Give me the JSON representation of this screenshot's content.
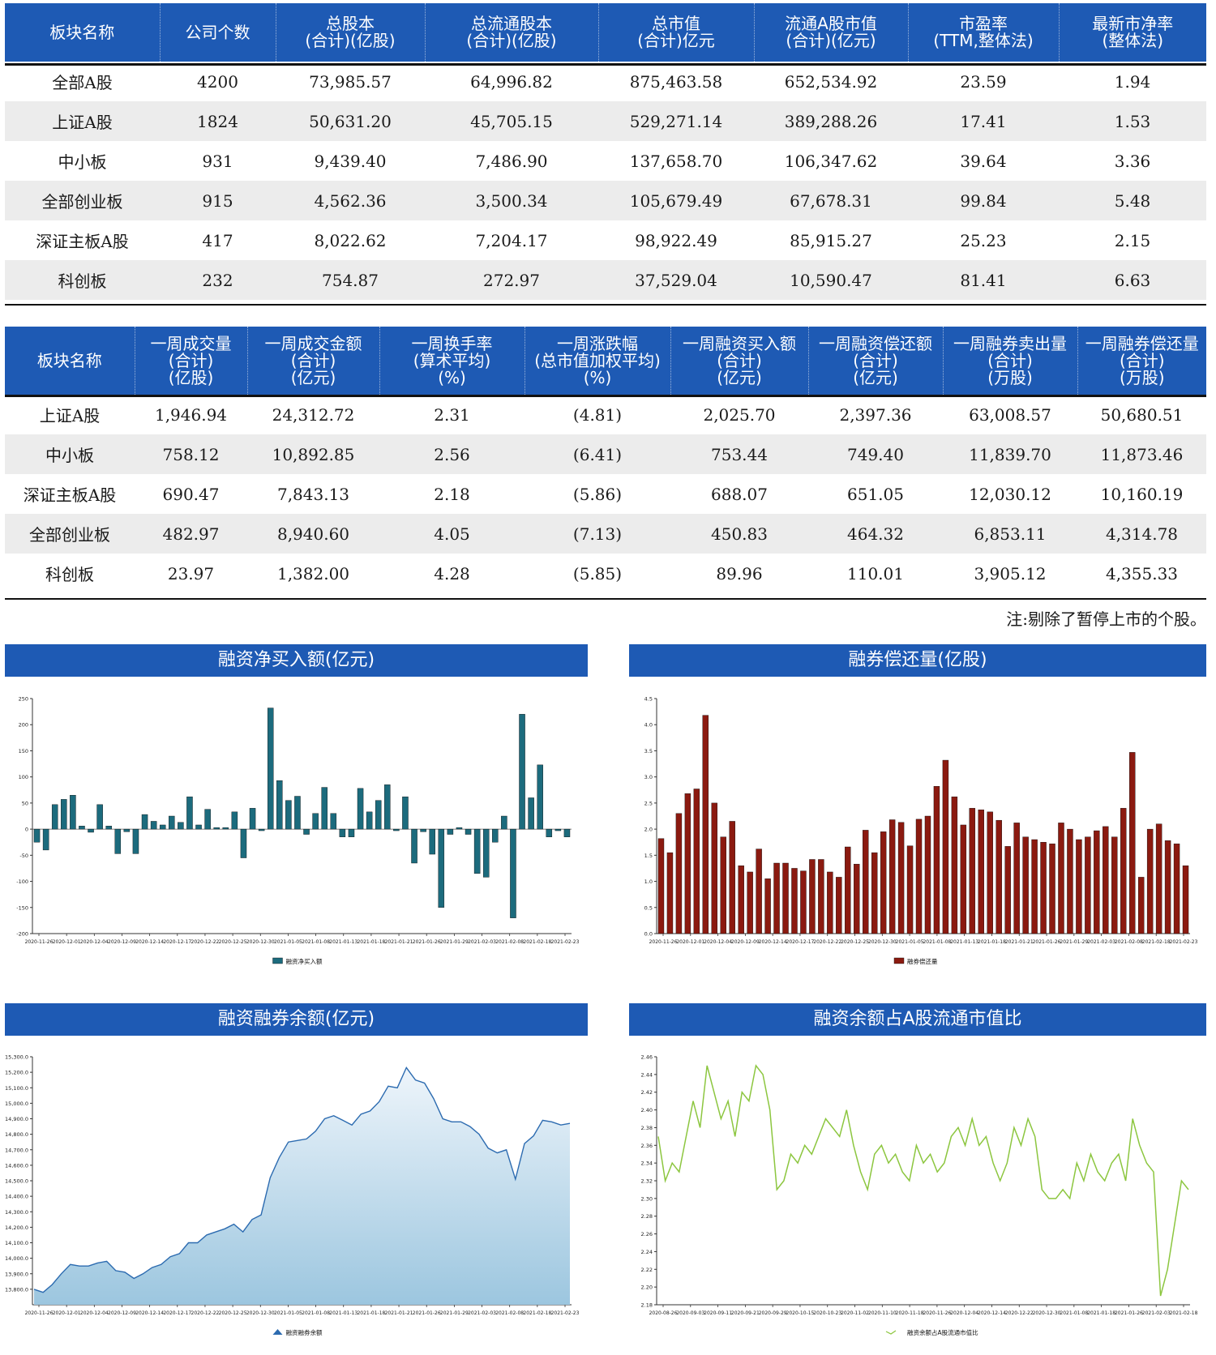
{
  "table1": {
    "headers": [
      "板块名称",
      "公司个数",
      "总股本\n(合计)(亿股)",
      "总流通股本\n(合计)(亿股)",
      "总市值\n(合计)亿元",
      "流通A股市值\n(合计)(亿元)",
      "市盈率\n(TTM,整体法)",
      "最新市净率\n(整体法)"
    ],
    "rows": [
      [
        "全部A股",
        "4200",
        "73,985.57",
        "64,996.82",
        "875,463.58",
        "652,534.92",
        "23.59",
        "1.94"
      ],
      [
        "上证A股",
        "1824",
        "50,631.20",
        "45,705.15",
        "529,271.14",
        "389,288.26",
        "17.41",
        "1.53"
      ],
      [
        "中小板",
        "931",
        "9,439.40",
        "7,486.90",
        "137,658.70",
        "106,347.62",
        "39.64",
        "3.36"
      ],
      [
        "全部创业板",
        "915",
        "4,562.36",
        "3,500.34",
        "105,679.49",
        "67,678.31",
        "99.84",
        "5.48"
      ],
      [
        "深证主板A股",
        "417",
        "8,022.62",
        "7,204.17",
        "98,922.49",
        "85,915.27",
        "25.23",
        "2.15"
      ],
      [
        "科创板",
        "232",
        "754.87",
        "272.97",
        "37,529.04",
        "10,590.47",
        "81.41",
        "6.63"
      ]
    ]
  },
  "table2": {
    "headers": [
      "板块名称",
      "一周成交量\n(合计)\n(亿股)",
      "一周成交金额\n(合计)\n(亿元)",
      "一周换手率\n(算术平均)\n(%)",
      "一周涨跌幅\n(总市值加权平均)\n(%)",
      "一周融资买入额\n(合计)\n(亿元)",
      "一周融资偿还额\n(合计)\n(亿元)",
      "一周融券卖出量\n(合计)\n(万股)",
      "一周融券偿还量\n(合计)\n(万股)"
    ],
    "rows": [
      [
        "上证A股",
        "1,946.94",
        "24,312.72",
        "2.31",
        "(4.81)",
        "2,025.70",
        "2,397.36",
        "63,008.57",
        "50,680.51"
      ],
      [
        "中小板",
        "758.12",
        "10,892.85",
        "2.56",
        "(6.41)",
        "753.44",
        "749.40",
        "11,839.70",
        "11,873.46"
      ],
      [
        "深证主板A股",
        "690.47",
        "7,843.13",
        "2.18",
        "(5.86)",
        "688.07",
        "651.05",
        "12,030.12",
        "10,160.19"
      ],
      [
        "全部创业板",
        "482.97",
        "8,940.60",
        "4.05",
        "(7.13)",
        "450.83",
        "464.32",
        "6,853.11",
        "4,314.78"
      ],
      [
        "科创板",
        "23.97",
        "1,382.00",
        "4.28",
        "(5.85)",
        "89.96",
        "110.01",
        "3,905.12",
        "4,355.33"
      ]
    ]
  },
  "note": "注:剔除了暂停上市的个股。",
  "colors": {
    "header_bg": "#1e5ab4",
    "bar1": "#1c6b7d",
    "bar2": "#8b1a10",
    "area_line": "#2c6bb0",
    "line4": "#8cc63f"
  },
  "chart_data": [
    {
      "id": "c1",
      "type": "bar",
      "title": "融资净买入额(亿元)",
      "legend": "融资净买入额",
      "ylim": [
        -200,
        250
      ],
      "yticks": [
        "-200",
        "-150",
        "-100",
        "-50",
        "0",
        "50",
        "100",
        "150",
        "200",
        "250"
      ],
      "xticks": [
        "2020-11-26",
        "2020-12-01",
        "2020-12-04",
        "2020-12-09",
        "2020-12-14",
        "2020-12-17",
        "2020-12-22",
        "2020-12-25",
        "2020-12-30",
        "2021-01-05",
        "2021-01-08",
        "2021-01-13",
        "2021-01-18",
        "2021-01-21",
        "2021-01-26",
        "2021-01-29",
        "2021-02-03",
        "2021-02-08",
        "2021-02-18",
        "2021-02-23"
      ],
      "values": [
        -25,
        -40,
        47,
        57,
        65,
        6,
        -6,
        47,
        6,
        -47,
        -5,
        -47,
        28,
        15,
        8,
        25,
        13,
        62,
        8,
        38,
        3,
        3,
        33,
        -55,
        40,
        -3,
        232,
        93,
        55,
        63,
        -10,
        30,
        80,
        30,
        -15,
        -15,
        78,
        33,
        55,
        85,
        -3,
        62,
        -65,
        -5,
        -48,
        -150,
        -10,
        3,
        -10,
        -85,
        -92,
        -25,
        25,
        -170,
        220,
        60,
        123,
        -15,
        -3,
        -15
      ]
    },
    {
      "id": "c2",
      "type": "bar",
      "title": "融券偿还量(亿股)",
      "legend": "融券偿还量",
      "ylim": [
        0,
        4.5
      ],
      "yticks": [
        "0.0",
        "0.5",
        "1.0",
        "1.5",
        "2.0",
        "2.5",
        "3.0",
        "3.5",
        "4.0",
        "4.5"
      ],
      "xticks": [
        "2020-11-26",
        "2020-12-01",
        "2020-12-04",
        "2020-12-09",
        "2020-12-14",
        "2020-12-17",
        "2020-12-22",
        "2020-12-25",
        "2020-12-30",
        "2021-01-05",
        "2021-01-08",
        "2021-01-13",
        "2021-01-18",
        "2021-01-21",
        "2021-01-26",
        "2021-01-29",
        "2021-02-03",
        "2021-02-08",
        "2021-02-18",
        "2021-02-23"
      ],
      "values": [
        1.82,
        1.55,
        2.3,
        2.68,
        2.77,
        4.18,
        2.5,
        1.85,
        2.15,
        1.3,
        1.18,
        1.62,
        1.05,
        1.35,
        1.35,
        1.25,
        1.2,
        1.42,
        1.42,
        1.18,
        1.08,
        1.66,
        1.33,
        1.98,
        1.55,
        1.95,
        2.18,
        2.13,
        1.68,
        2.19,
        2.25,
        2.82,
        3.32,
        2.62,
        2.08,
        2.4,
        2.37,
        2.33,
        2.17,
        1.67,
        2.12,
        1.85,
        1.8,
        1.75,
        1.72,
        2.12,
        2.0,
        1.8,
        1.85,
        1.97,
        2.05,
        1.85,
        2.4,
        3.47,
        1.08,
        2.0,
        2.1,
        1.78,
        1.72,
        1.3
      ]
    },
    {
      "id": "c3",
      "type": "area",
      "title": "融资融券余额(亿元)",
      "legend": "融资融券余额",
      "ylim": [
        13700,
        15300
      ],
      "yticks": [
        "13,800.0",
        "13,900.0",
        "14,000.0",
        "14,100.0",
        "14,200.0",
        "14,300.0",
        "14,400.0",
        "14,500.0",
        "14,600.0",
        "14,700.0",
        "14,800.0",
        "14,900.0",
        "15,000.0",
        "15,100.0",
        "15,200.0",
        "15,300.0"
      ],
      "xticks": [
        "2020-11-26",
        "2020-12-01",
        "2020-12-04",
        "2020-12-09",
        "2020-12-14",
        "2020-12-17",
        "2020-12-22",
        "2020-12-25",
        "2020-12-30",
        "2021-01-05",
        "2021-01-08",
        "2021-01-13",
        "2021-01-18",
        "2021-01-21",
        "2021-01-26",
        "2021-01-29",
        "2021-02-03",
        "2021-02-08",
        "2021-02-18",
        "2021-02-23"
      ],
      "values": [
        13800,
        13780,
        13830,
        13900,
        13960,
        13950,
        13950,
        13970,
        13980,
        13920,
        13910,
        13870,
        13900,
        13940,
        13960,
        14010,
        14030,
        14100,
        14100,
        14150,
        14170,
        14190,
        14220,
        14170,
        14250,
        14280,
        14520,
        14650,
        14750,
        14760,
        14770,
        14820,
        14900,
        14920,
        14890,
        14860,
        14930,
        14950,
        15010,
        15110,
        15100,
        15230,
        15150,
        15130,
        15030,
        14900,
        14880,
        14880,
        14850,
        14800,
        14710,
        14680,
        14700,
        14510,
        14740,
        14790,
        14890,
        14880,
        14860,
        14870
      ]
    },
    {
      "id": "c4",
      "type": "line",
      "title": "融资余额占A股流通市值比",
      "legend": "融资余额占A股流通市值比",
      "ylim": [
        2.18,
        2.46
      ],
      "yticks": [
        "2.18",
        "2.20",
        "2.22",
        "2.24",
        "2.26",
        "2.28",
        "2.30",
        "2.32",
        "2.34",
        "2.36",
        "2.38",
        "2.40",
        "2.42",
        "2.44",
        "2.46"
      ],
      "xticks": [
        "2020-08-26",
        "2020-09-03",
        "2020-09-11",
        "2020-09-21",
        "2020-09-29",
        "2020-10-15",
        "2020-10-23",
        "2020-11-02",
        "2020-11-10",
        "2020-11-18",
        "2020-11-26",
        "2020-12-04",
        "2020-12-14",
        "2020-12-22",
        "2020-12-30",
        "2021-01-08",
        "2021-01-18",
        "2021-01-26",
        "2021-02-03",
        "2021-02-18"
      ],
      "values": [
        2.37,
        2.32,
        2.34,
        2.33,
        2.37,
        2.41,
        2.38,
        2.45,
        2.42,
        2.39,
        2.41,
        2.37,
        2.42,
        2.41,
        2.45,
        2.44,
        2.4,
        2.31,
        2.32,
        2.35,
        2.34,
        2.36,
        2.35,
        2.37,
        2.39,
        2.38,
        2.37,
        2.4,
        2.36,
        2.33,
        2.31,
        2.35,
        2.36,
        2.34,
        2.35,
        2.33,
        2.32,
        2.36,
        2.34,
        2.35,
        2.33,
        2.34,
        2.37,
        2.38,
        2.36,
        2.39,
        2.36,
        2.37,
        2.34,
        2.32,
        2.34,
        2.38,
        2.36,
        2.39,
        2.37,
        2.31,
        2.3,
        2.3,
        2.31,
        2.3,
        2.34,
        2.32,
        2.35,
        2.33,
        2.32,
        2.34,
        2.35,
        2.32,
        2.39,
        2.36,
        2.34,
        2.33,
        2.19,
        2.22,
        2.27,
        2.32,
        2.31
      ]
    }
  ]
}
